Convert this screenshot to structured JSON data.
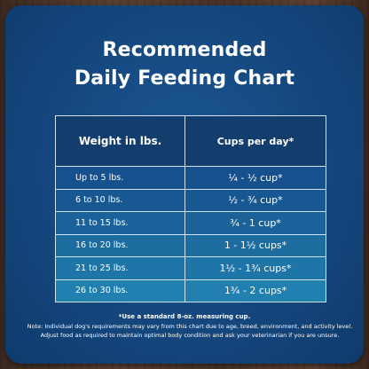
{
  "title_line1": "Recommended",
  "title_line2": "Daily Feeding Chart",
  "table": {
    "header": {
      "col1": "Weight in lbs.",
      "col2": "Cups per day*"
    },
    "rows": [
      {
        "weight": "Up to 5 lbs.",
        "cups": "¼ - ½ cup*"
      },
      {
        "weight": "6 to 10 lbs.",
        "cups": "½ - ¾ cup*"
      },
      {
        "weight": "11 to 15 lbs.",
        "cups": "¾ - 1 cup*"
      },
      {
        "weight": "16 to 20 lbs.",
        "cups": "1 - 1½ cups*"
      },
      {
        "weight": "21 to 25 lbs.",
        "cups": "1½ - 1¾ cups*"
      },
      {
        "weight": "26 to 30 lbs.",
        "cups": "1¾ - 2 cups*"
      }
    ]
  },
  "footnote_measure": "*Use a standard 8-oz. measuring cup.",
  "footnote_note": "Note: Individual dog's requirements may vary from this chart due to age, breed, environment, and activity level. Adjust food as required to maintain optimal body condition and ask your veterinarian if you are unsure."
}
